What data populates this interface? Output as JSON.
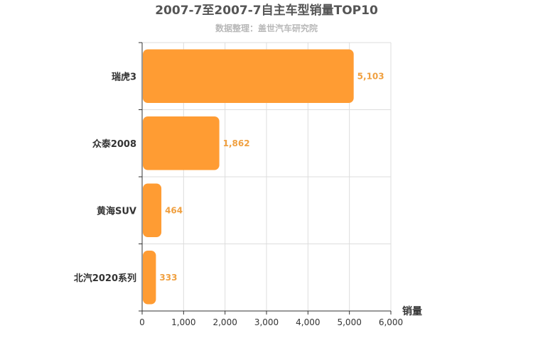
{
  "chart_data": {
    "type": "bar",
    "orientation": "horizontal",
    "title": "2007-7至2007-7自主车型销量TOP10",
    "subtitle": "数据整理：盖世汽车研究院",
    "categories": [
      "瑞虎3",
      "众泰2008",
      "黄海SUV",
      "北汽2020系列"
    ],
    "values": [
      5103,
      1862,
      464,
      333
    ],
    "value_labels": [
      "5,103",
      "1,862",
      "464",
      "333"
    ],
    "xlabel": "销量",
    "xlim": [
      0,
      6000
    ],
    "x_ticks": [
      0,
      1000,
      2000,
      3000,
      4000,
      5000,
      6000
    ],
    "x_tick_labels": [
      "0",
      "1,000",
      "2,000",
      "3,000",
      "4,000",
      "5,000",
      "6,000"
    ],
    "grid": true,
    "bar_color": "#ff9c33",
    "label_color": "#f0a040"
  }
}
